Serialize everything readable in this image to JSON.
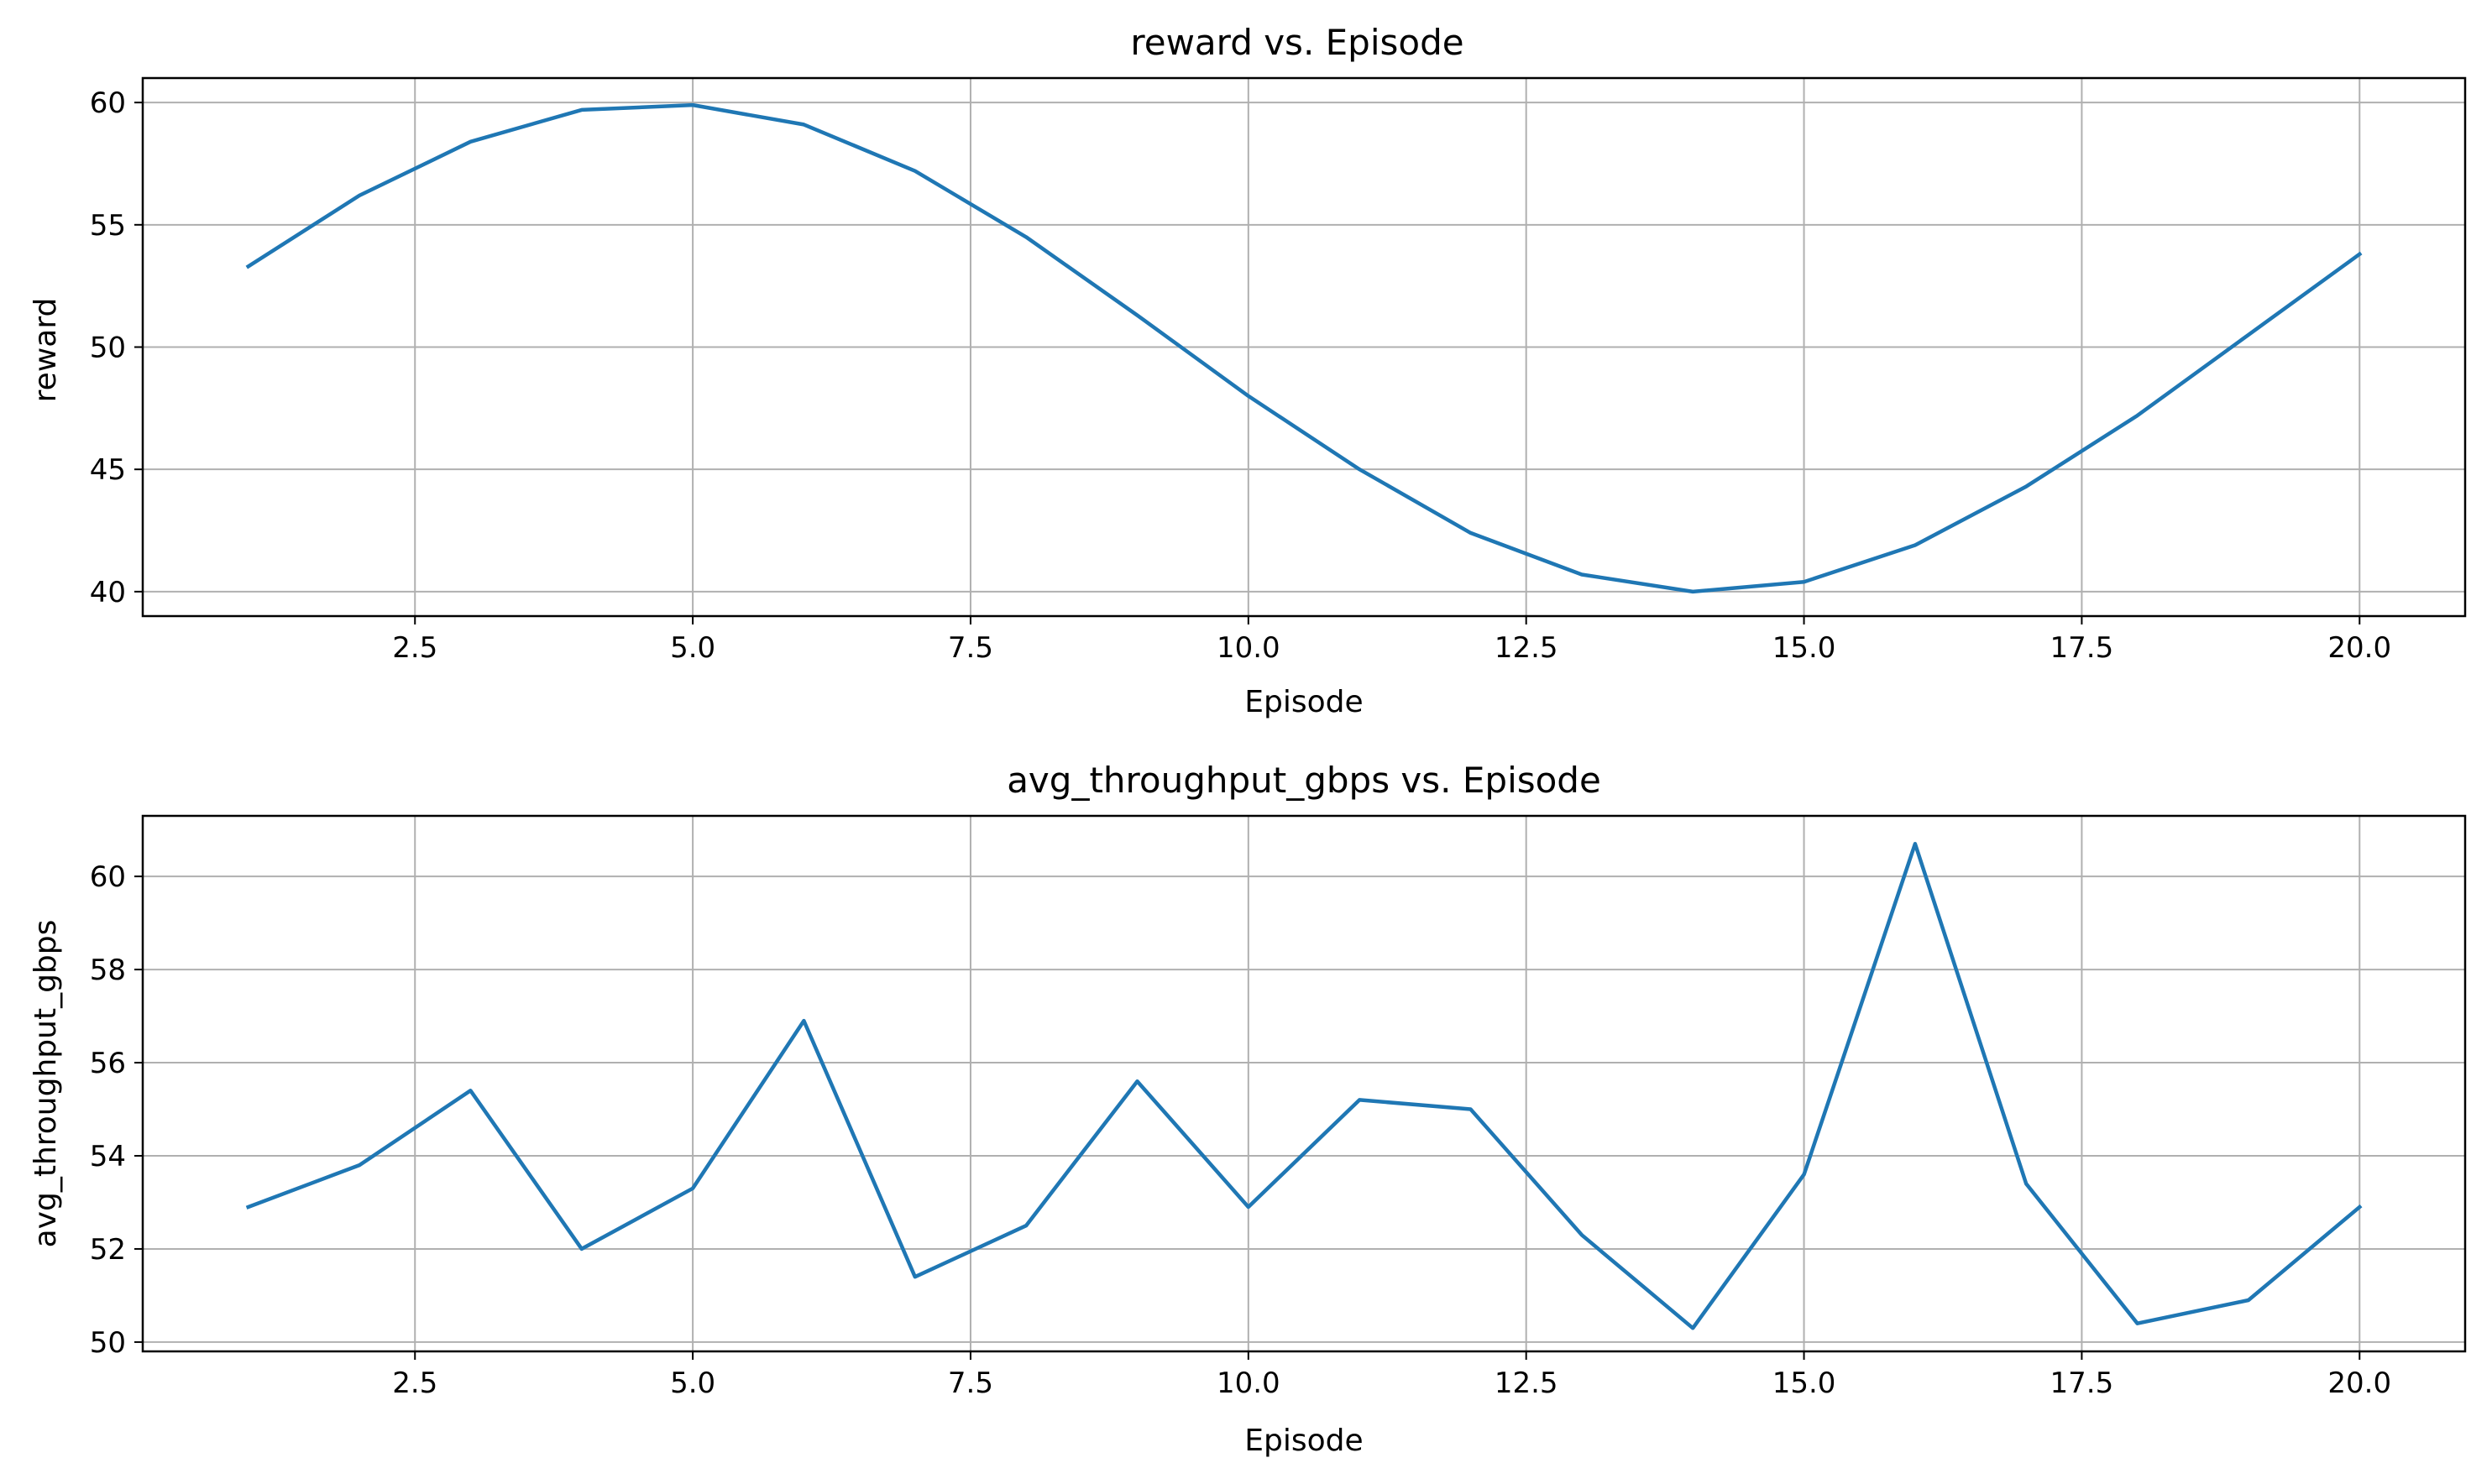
{
  "colors": {
    "line": "#1f77b4",
    "grid": "#b0b0b0",
    "axes": "#000000"
  },
  "chart_data": [
    {
      "type": "line",
      "title": "reward vs. Episode",
      "xlabel": "Episode",
      "ylabel": "reward",
      "grid": true,
      "xlim": [
        0.05,
        20.95
      ],
      "ylim": [
        39.0,
        61.0
      ],
      "xticks": [
        2.5,
        5.0,
        7.5,
        10.0,
        12.5,
        15.0,
        17.5,
        20.0
      ],
      "xtick_labels": [
        "2.5",
        "5.0",
        "7.5",
        "10.0",
        "12.5",
        "15.0",
        "17.5",
        "20.0"
      ],
      "yticks": [
        40,
        45,
        50,
        55,
        60
      ],
      "ytick_labels": [
        "40",
        "45",
        "50",
        "55",
        "60"
      ],
      "series": [
        {
          "x": [
            1,
            2,
            3,
            4,
            5,
            6,
            7,
            8,
            9,
            10,
            11,
            12,
            13,
            14,
            15,
            16,
            17,
            18,
            19,
            20
          ],
          "values": [
            53.3,
            56.2,
            58.4,
            59.7,
            59.9,
            59.1,
            57.2,
            54.5,
            51.3,
            48.0,
            45.0,
            42.4,
            40.7,
            40.0,
            40.4,
            41.9,
            44.3,
            47.2,
            50.5,
            53.8
          ]
        }
      ]
    },
    {
      "type": "line",
      "title": "avg_throughput_gbps vs. Episode",
      "xlabel": "Episode",
      "ylabel": "avg_throughput_gbps",
      "grid": true,
      "xlim": [
        0.05,
        20.95
      ],
      "ylim": [
        49.8,
        61.3
      ],
      "xticks": [
        2.5,
        5.0,
        7.5,
        10.0,
        12.5,
        15.0,
        17.5,
        20.0
      ],
      "xtick_labels": [
        "2.5",
        "5.0",
        "7.5",
        "10.0",
        "12.5",
        "15.0",
        "17.5",
        "20.0"
      ],
      "yticks": [
        50,
        52,
        54,
        56,
        58,
        60
      ],
      "ytick_labels": [
        "50",
        "52",
        "54",
        "56",
        "58",
        "60"
      ],
      "series": [
        {
          "x": [
            1,
            2,
            3,
            4,
            5,
            6,
            7,
            8,
            9,
            10,
            11,
            12,
            13,
            14,
            15,
            16,
            17,
            18,
            19,
            20
          ],
          "values": [
            52.9,
            53.8,
            55.4,
            52.0,
            53.3,
            56.9,
            51.4,
            52.5,
            55.6,
            52.9,
            55.2,
            55.0,
            52.3,
            50.3,
            53.6,
            60.7,
            53.4,
            50.4,
            50.9,
            52.9
          ]
        }
      ]
    }
  ]
}
